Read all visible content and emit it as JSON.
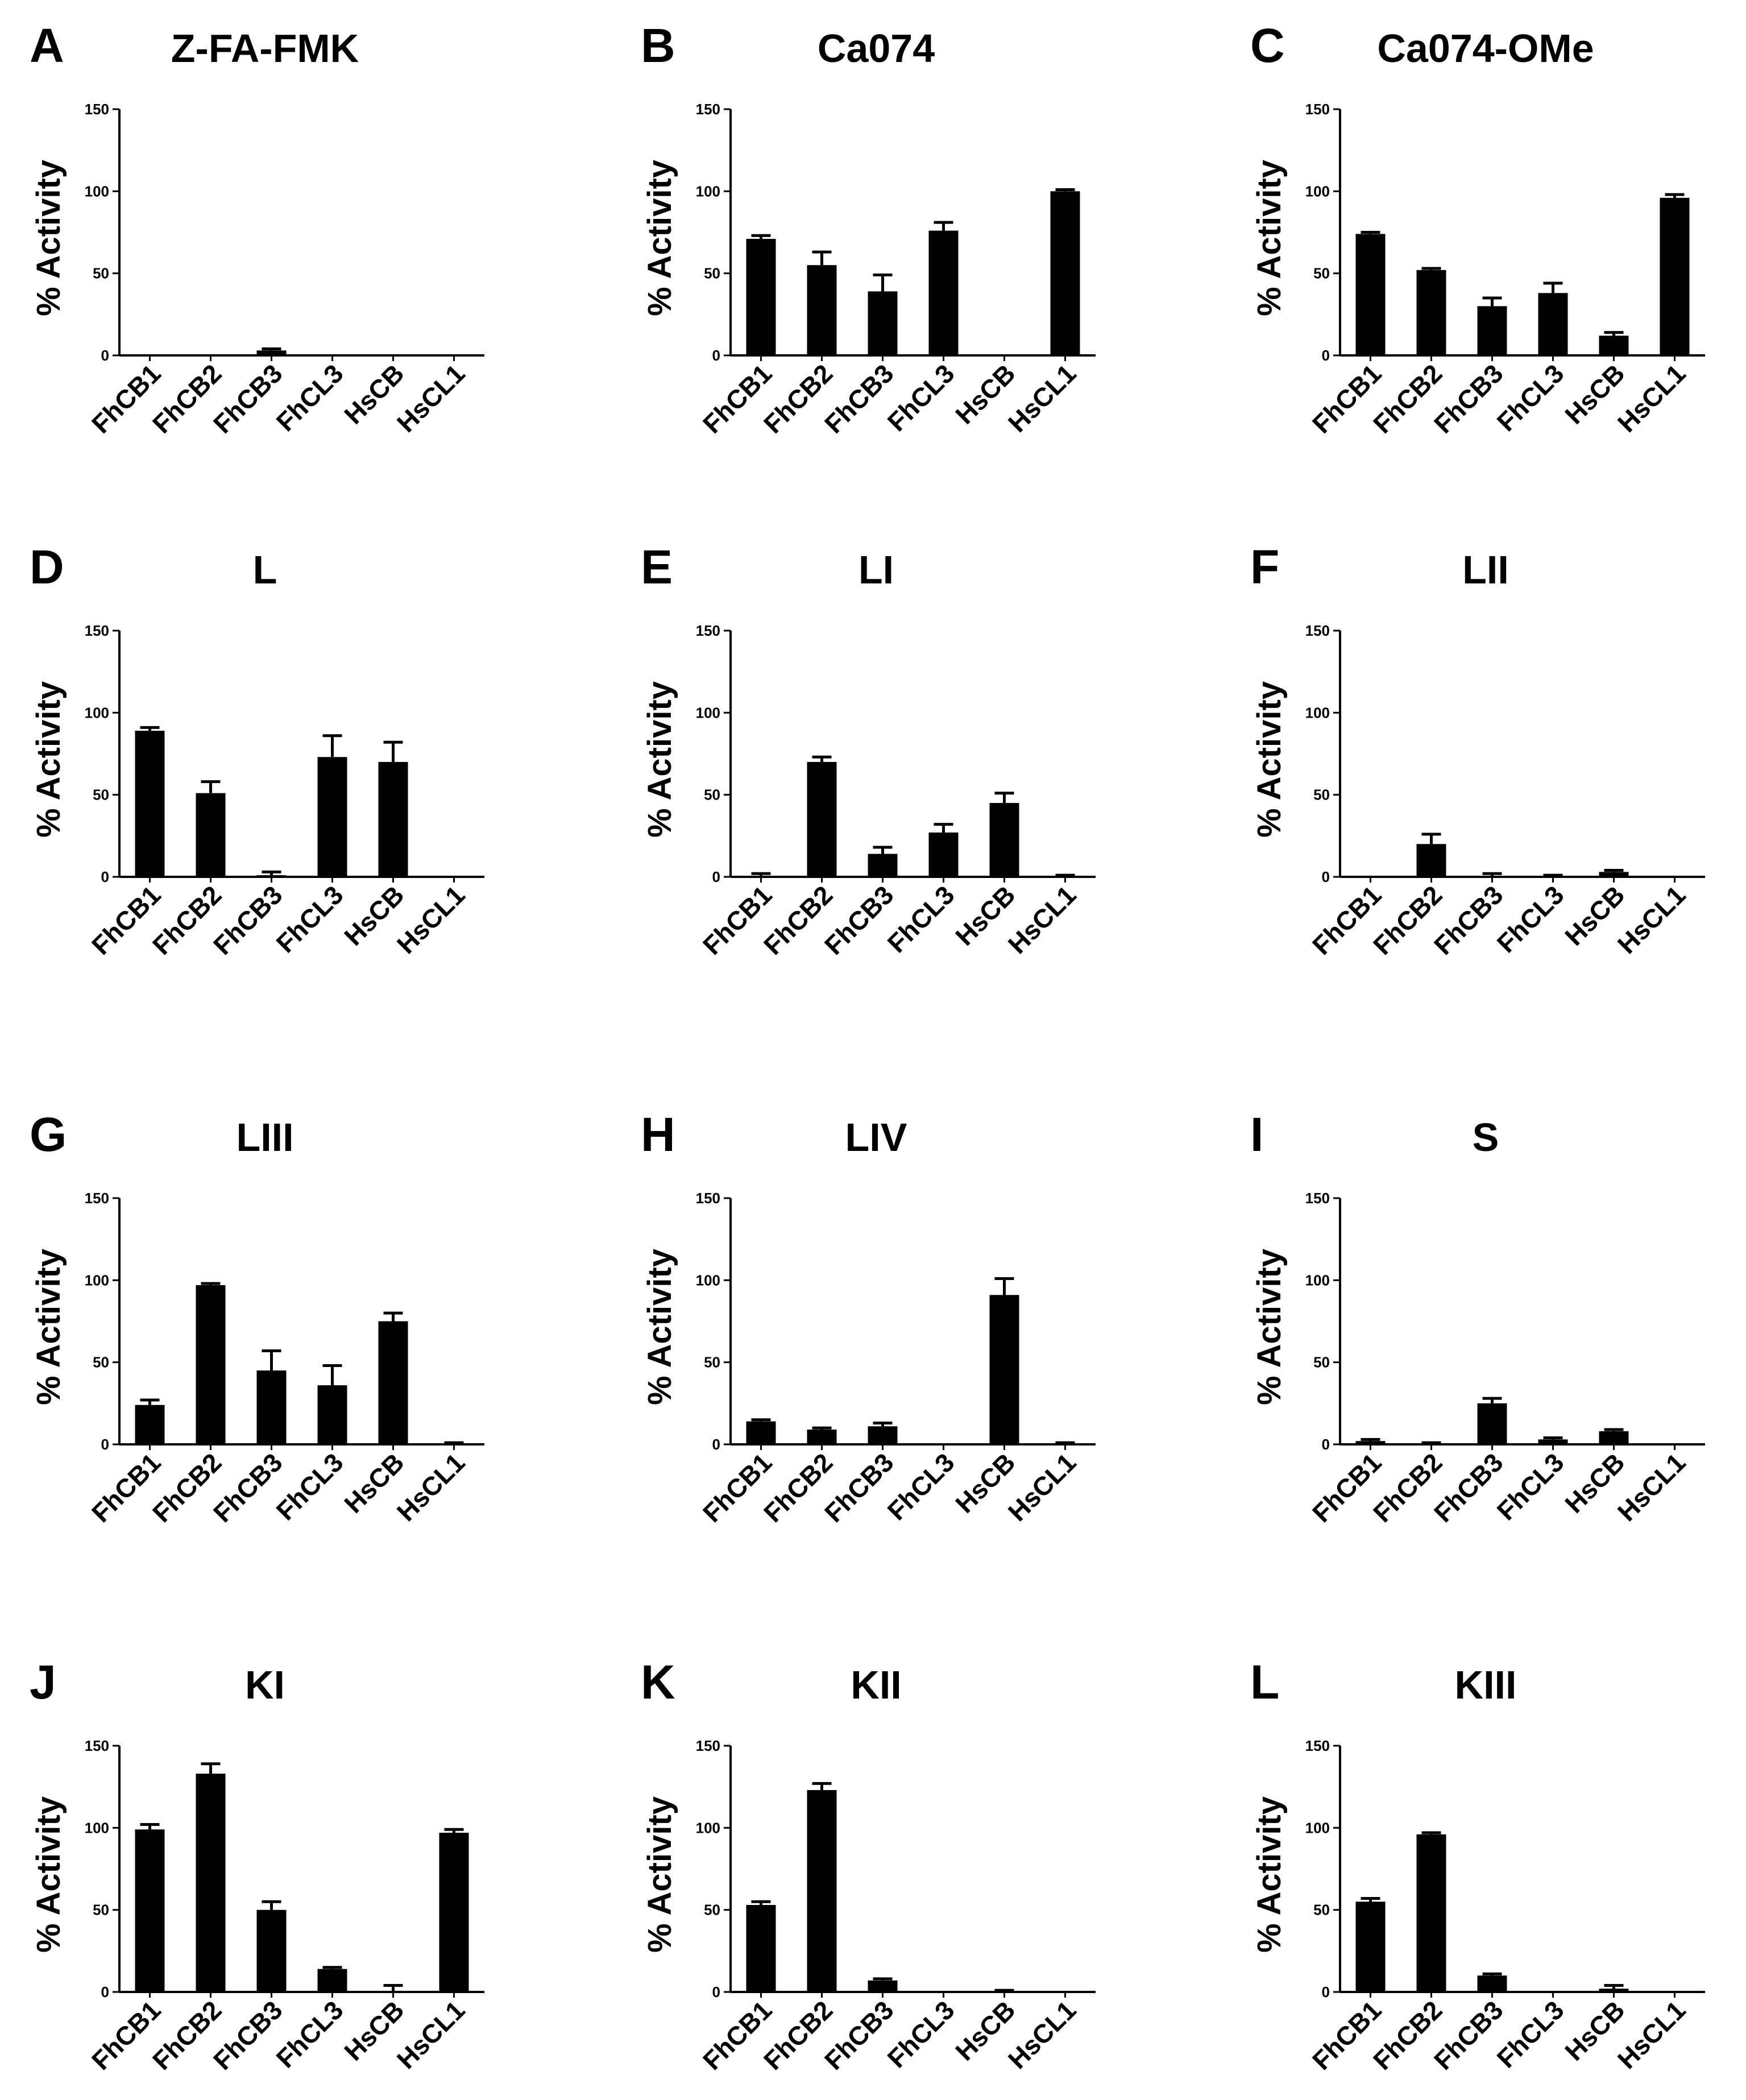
{
  "chart_data": [
    {
      "type": "bar",
      "letter": "A",
      "title": "Z-FA-FMK",
      "ylabel": "% Activity",
      "xlabel": "",
      "categories": [
        "FhCB1",
        "FhCB2",
        "FhCB3",
        "FhCL3",
        "HsCB",
        "HsCL1"
      ],
      "values": [
        0,
        0,
        3,
        0,
        0,
        0
      ],
      "errors": [
        0,
        0,
        1,
        0,
        0,
        0
      ],
      "ylim": [
        0,
        150
      ],
      "yticks": [
        0,
        50,
        100,
        150
      ]
    },
    {
      "type": "bar",
      "letter": "B",
      "title": "Ca074",
      "ylabel": "% Activity",
      "xlabel": "",
      "categories": [
        "FhCB1",
        "FhCB2",
        "FhCB3",
        "FhCL3",
        "HsCB",
        "HsCL1"
      ],
      "values": [
        71,
        55,
        39,
        76,
        0,
        100
      ],
      "errors": [
        2,
        8,
        10,
        5,
        0,
        1
      ],
      "ylim": [
        0,
        150
      ],
      "yticks": [
        0,
        50,
        100,
        150
      ]
    },
    {
      "type": "bar",
      "letter": "C",
      "title": "Ca074-OMe",
      "ylabel": "% Activity",
      "xlabel": "",
      "categories": [
        "FhCB1",
        "FhCB2",
        "FhCB3",
        "FhCL3",
        "HsCB",
        "HsCL1"
      ],
      "values": [
        74,
        52,
        30,
        38,
        12,
        96
      ],
      "errors": [
        1,
        1,
        5,
        6,
        2,
        2
      ],
      "ylim": [
        0,
        150
      ],
      "yticks": [
        0,
        50,
        100,
        150
      ]
    },
    {
      "type": "bar",
      "letter": "D",
      "title": "L",
      "ylabel": "% Activity",
      "xlabel": "",
      "categories": [
        "FhCB1",
        "FhCB2",
        "FhCB3",
        "FhCL3",
        "HsCB",
        "HsCL1"
      ],
      "values": [
        89,
        51,
        1,
        73,
        70,
        0
      ],
      "errors": [
        2,
        7,
        2,
        13,
        12,
        0
      ],
      "ylim": [
        0,
        150
      ],
      "yticks": [
        0,
        50,
        100,
        150
      ]
    },
    {
      "type": "bar",
      "letter": "E",
      "title": "LI",
      "ylabel": "% Activity",
      "xlabel": "",
      "categories": [
        "FhCB1",
        "FhCB2",
        "FhCB3",
        "FhCL3",
        "HsCB",
        "HsCL1"
      ],
      "values": [
        0,
        70,
        14,
        27,
        45,
        0
      ],
      "errors": [
        2,
        3,
        4,
        5,
        6,
        1
      ],
      "ylim": [
        0,
        150
      ],
      "yticks": [
        0,
        50,
        100,
        150
      ]
    },
    {
      "type": "bar",
      "letter": "F",
      "title": "LII",
      "ylabel": "% Activity",
      "xlabel": "",
      "categories": [
        "FhCB1",
        "FhCB2",
        "FhCB3",
        "FhCL3",
        "HsCB",
        "HsCL1"
      ],
      "values": [
        0,
        20,
        0,
        0,
        3,
        0
      ],
      "errors": [
        0,
        6,
        2,
        1,
        1,
        0
      ],
      "ylim": [
        0,
        150
      ],
      "yticks": [
        0,
        50,
        100,
        150
      ]
    },
    {
      "type": "bar",
      "letter": "G",
      "title": "LIII",
      "ylabel": "% Activity",
      "xlabel": "",
      "categories": [
        "FhCB1",
        "FhCB2",
        "FhCB3",
        "FhCL3",
        "HsCB",
        "HsCL1"
      ],
      "values": [
        24,
        97,
        45,
        36,
        75,
        0
      ],
      "errors": [
        3,
        1,
        12,
        12,
        5,
        1
      ],
      "ylim": [
        0,
        150
      ],
      "yticks": [
        0,
        50,
        100,
        150
      ]
    },
    {
      "type": "bar",
      "letter": "H",
      "title": "LIV",
      "ylabel": "% Activity",
      "xlabel": "",
      "categories": [
        "FhCB1",
        "FhCB2",
        "FhCB3",
        "FhCL3",
        "HsCB",
        "HsCL1"
      ],
      "values": [
        14,
        9,
        11,
        0,
        91,
        0
      ],
      "errors": [
        1,
        1,
        2,
        0,
        10,
        1
      ],
      "ylim": [
        0,
        150
      ],
      "yticks": [
        0,
        50,
        100,
        150
      ]
    },
    {
      "type": "bar",
      "letter": "I",
      "title": "S",
      "ylabel": "% Activity",
      "xlabel": "",
      "categories": [
        "FhCB1",
        "FhCB2",
        "FhCB3",
        "FhCL3",
        "HsCB",
        "HsCL1"
      ],
      "values": [
        2,
        0,
        25,
        3,
        8,
        0
      ],
      "errors": [
        1,
        1,
        3,
        1,
        1,
        0
      ],
      "ylim": [
        0,
        150
      ],
      "yticks": [
        0,
        50,
        100,
        150
      ]
    },
    {
      "type": "bar",
      "letter": "J",
      "title": "KI",
      "ylabel": "% Activity",
      "xlabel": "",
      "categories": [
        "FhCB1",
        "FhCB2",
        "FhCB3",
        "FhCL3",
        "HsCB",
        "HsCL1"
      ],
      "values": [
        99,
        133,
        50,
        14,
        0,
        97
      ],
      "errors": [
        3,
        6,
        5,
        1,
        4,
        2
      ],
      "ylim": [
        0,
        150
      ],
      "yticks": [
        0,
        50,
        100,
        150
      ]
    },
    {
      "type": "bar",
      "letter": "K",
      "title": "KII",
      "ylabel": "% Activity",
      "xlabel": "",
      "categories": [
        "FhCB1",
        "FhCB2",
        "FhCB3",
        "FhCL3",
        "HsCB",
        "HsCL1"
      ],
      "values": [
        53,
        123,
        7,
        0,
        0,
        0
      ],
      "errors": [
        2,
        4,
        1,
        0,
        1,
        0
      ],
      "ylim": [
        0,
        150
      ],
      "yticks": [
        0,
        50,
        100,
        150
      ]
    },
    {
      "type": "bar",
      "letter": "L",
      "title": "KIII",
      "ylabel": "% Activity",
      "xlabel": "",
      "categories": [
        "FhCB1",
        "FhCB2",
        "FhCB3",
        "FhCL3",
        "HsCB",
        "HsCL1"
      ],
      "values": [
        55,
        96,
        10,
        0,
        2,
        0
      ],
      "errors": [
        2,
        1,
        1,
        0,
        2,
        0
      ],
      "ylim": [
        0,
        150
      ],
      "yticks": [
        0,
        50,
        100,
        150
      ]
    }
  ]
}
